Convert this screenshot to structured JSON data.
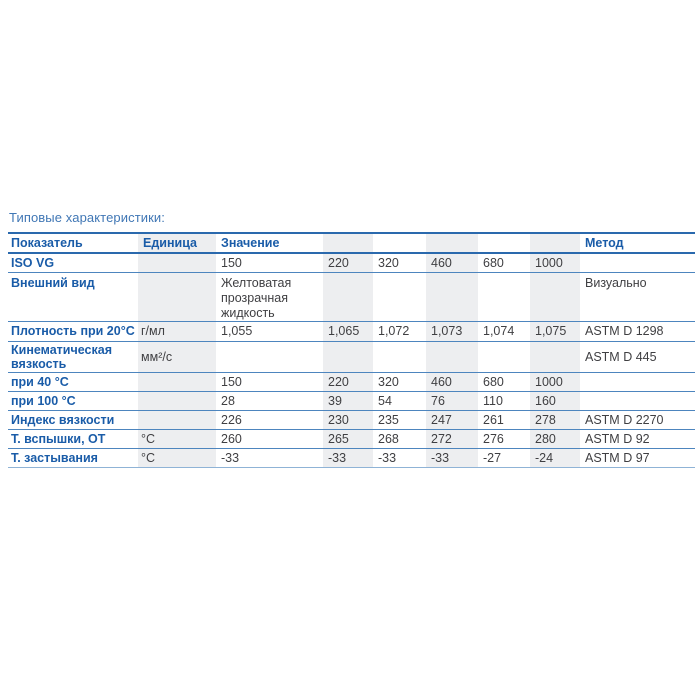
{
  "page": {
    "title": "Типовые характеристики:"
  },
  "colors": {
    "accent_blue": "#1A5CA8",
    "title_blue": "#4077B5",
    "header_border_blue": "#2A69AD",
    "row_border_blue": "#4D85BE",
    "column_band_gray": "#EDEEF0",
    "value_text_gray": "#3F3F42"
  },
  "table": {
    "columns": [
      {
        "key": "indicator",
        "label": "Показатель"
      },
      {
        "key": "unit",
        "label": "Единица"
      },
      {
        "key": "v150",
        "label": "Значение"
      },
      {
        "key": "v220",
        "label": ""
      },
      {
        "key": "v320",
        "label": ""
      },
      {
        "key": "v460",
        "label": ""
      },
      {
        "key": "v680",
        "label": ""
      },
      {
        "key": "v1000",
        "label": ""
      },
      {
        "key": "method",
        "label": "Метод"
      }
    ],
    "rows": [
      {
        "cells": [
          "ISO VG",
          "",
          "150",
          "220",
          "320",
          "460",
          "680",
          "1000",
          ""
        ]
      },
      {
        "cells": [
          "Внешний вид",
          "",
          "Желтоватая прозрачная жидкость",
          "",
          "",
          "",
          "",
          "",
          "Визуально"
        ]
      },
      {
        "cells": [
          "Плотность при 20°C",
          "г/мл",
          "1,055",
          "1,065",
          "1,072",
          "1,073",
          "1,074",
          "1,075",
          "ASTM D 1298"
        ]
      },
      {
        "cells": [
          "Кинематическая вязкость",
          "мм²/с",
          "",
          "",
          "",
          "",
          "",
          "",
          "ASTM D 445"
        ]
      },
      {
        "cells": [
          "при 40 °C",
          "",
          "150",
          "220",
          "320",
          "460",
          "680",
          "1000",
          ""
        ]
      },
      {
        "cells": [
          "при 100 °C",
          "",
          "28",
          "39",
          "54",
          "76",
          "110",
          "160",
          ""
        ]
      },
      {
        "cells": [
          "Индекс вязкости",
          "",
          "226",
          "230",
          "235",
          "247",
          "261",
          "278",
          "ASTM D 2270"
        ]
      },
      {
        "cells": [
          "Т. вспышки, ОТ",
          "°C",
          "260",
          "265",
          "268",
          "272",
          "276",
          "280",
          "ASTM D 92"
        ]
      },
      {
        "cells": [
          "Т. застывания",
          "°C",
          "-33",
          "-33",
          "-33",
          "-33",
          "-27",
          "-24",
          "ASTM D 97"
        ]
      }
    ]
  }
}
